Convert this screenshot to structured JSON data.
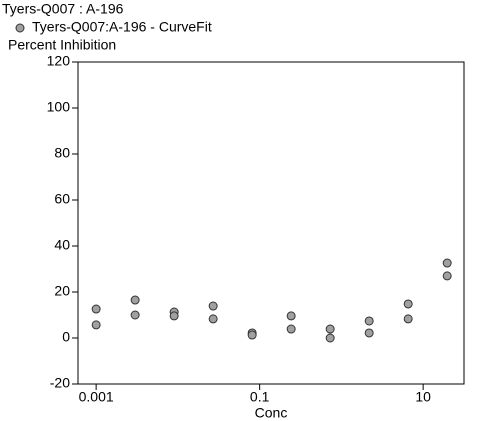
{
  "chart_data": {
    "type": "scatter",
    "title": "Tyers-Q007  :  A-196",
    "y_label": "Percent Inhibition",
    "x_label": "Conc",
    "xscale": "log",
    "xlim": [
      0.0006,
      31.6
    ],
    "xticks": [
      0.001,
      0.1,
      10
    ],
    "ylim": [
      -20,
      120
    ],
    "yticks": [
      -20,
      0,
      20,
      40,
      60,
      80,
      100,
      120
    ],
    "legend": "top-left",
    "series": [
      {
        "name": "Tyers-Q007:A-196 - CurveFit",
        "color": "#a0a0a0",
        "x": [
          0.001,
          0.001,
          0.003,
          0.003,
          0.009,
          0.009,
          0.027,
          0.027,
          0.081,
          0.081,
          0.243,
          0.243,
          0.729,
          0.729,
          2.187,
          2.187,
          6.561,
          6.561,
          19.68,
          19.68
        ],
        "values": [
          12.6,
          5.7,
          16.5,
          10,
          11.3,
          9.6,
          13.9,
          8.3,
          2.2,
          1.3,
          9.6,
          3.9,
          3.9,
          0,
          7.4,
          2.2,
          14.8,
          8.3,
          32.6,
          27
        ]
      }
    ]
  }
}
